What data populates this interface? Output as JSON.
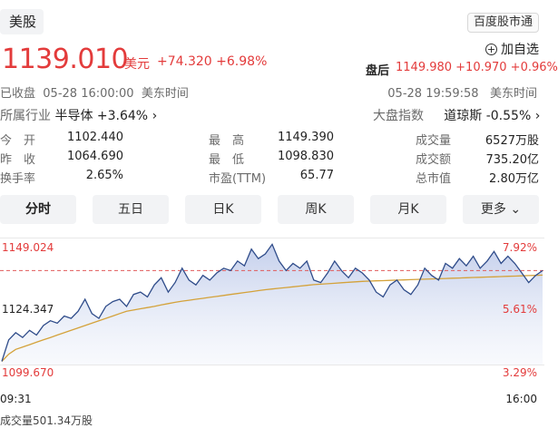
{
  "header": {
    "market_tab": "美股",
    "hk_connect_button": "百度股市通"
  },
  "quote": {
    "price": "1139.010",
    "currency": "美元",
    "change": "+74.320",
    "change_pct": "+6.98%",
    "watch_label": "加自选",
    "after_hours_label": "盘后",
    "after_hours_value": "1149.980 +10.970 +0.96%",
    "status": "已收盘",
    "close_time": "05-28 16:00:00",
    "tz": "美东时间",
    "after_time": "05-28 19:59:58",
    "after_tz": "美东时间",
    "industry_label": "所属行业",
    "industry_value": "半导体 +3.64%",
    "index_label": "大盘指数",
    "index_value": "道琼斯 -0.55%"
  },
  "stats": {
    "open_label": "今　开",
    "open": "1102.440",
    "high_label": "最　高",
    "high": "1149.390",
    "volume_label": "成交量",
    "volume": "6527万股",
    "prev_label": "昨　收",
    "prev": "1064.690",
    "low_label": "最　低",
    "low": "1098.830",
    "turnover_label": "成交额",
    "turnover": "735.20亿",
    "turnover_rate_label": "换手率",
    "turnover_rate": "2.65%",
    "pe_label": "市盈(TTM)",
    "pe": "65.77",
    "mcap_label": "总市值",
    "mcap": "2.80万亿"
  },
  "tabs": [
    "分时",
    "五日",
    "日K",
    "周K",
    "月K",
    "更多"
  ],
  "chart_data": {
    "type": "line",
    "y_left_ticks": [
      "1149.024",
      "1124.347",
      "1099.670"
    ],
    "y_right_ticks": [
      "7.92%",
      "5.61%",
      "3.29%"
    ],
    "x_ticks": [
      "09:31",
      "16:00"
    ],
    "ylim": [
      1099.67,
      1149.024
    ],
    "reference_line": 1139.01,
    "price_series": [
      1101,
      1110,
      1113,
      1111,
      1114,
      1112,
      1116,
      1118,
      1117,
      1120,
      1119,
      1122,
      1127,
      1121,
      1119,
      1124,
      1126,
      1127,
      1124,
      1129,
      1130,
      1128,
      1133,
      1136,
      1130,
      1134,
      1140,
      1135,
      1133,
      1137,
      1135,
      1138,
      1140,
      1139,
      1143,
      1141,
      1148,
      1144,
      1146,
      1150,
      1143,
      1139,
      1142,
      1140,
      1143,
      1135,
      1134,
      1138,
      1143,
      1139,
      1136,
      1140,
      1138,
      1135,
      1130,
      1128,
      1133,
      1135,
      1131,
      1129,
      1133,
      1140,
      1137,
      1135,
      1142,
      1140,
      1144,
      1141,
      1145,
      1140,
      1143,
      1147,
      1142,
      1145,
      1142,
      1138,
      1134,
      1137,
      1139
    ],
    "avg_series": [
      1101,
      1104,
      1106,
      1107,
      1108,
      1109,
      1110,
      1111,
      1112,
      1113,
      1114,
      1115,
      1116,
      1117,
      1118,
      1119,
      1120,
      1121,
      1122,
      1122.5,
      1123,
      1123.5,
      1124,
      1124.6,
      1125.2,
      1125.7,
      1126.2,
      1126.6,
      1127,
      1127.4,
      1127.8,
      1128.2,
      1128.6,
      1129,
      1129.4,
      1129.8,
      1130.2,
      1130.6,
      1131,
      1131.3,
      1131.6,
      1131.9,
      1132.2,
      1132.5,
      1132.8,
      1133.1,
      1133.3,
      1133.5,
      1133.7,
      1133.9,
      1134.1,
      1134.3,
      1134.5,
      1134.6,
      1134.7,
      1134.8,
      1134.9,
      1135,
      1135.1,
      1135.2,
      1135.3,
      1135.4,
      1135.5,
      1135.6,
      1135.7,
      1135.8,
      1135.9,
      1136,
      1136.1,
      1136.2,
      1136.3,
      1136.4,
      1136.5,
      1136.6,
      1136.7,
      1136.8,
      1136.9,
      1137,
      1137.1
    ],
    "volume_label": "成交量501.34万股",
    "colors": {
      "line": "#2f4c8a",
      "fill": "#c9d3ec",
      "avg": "#d4a23a",
      "ref": "#e05b5b",
      "up": "#e33b3b"
    }
  }
}
